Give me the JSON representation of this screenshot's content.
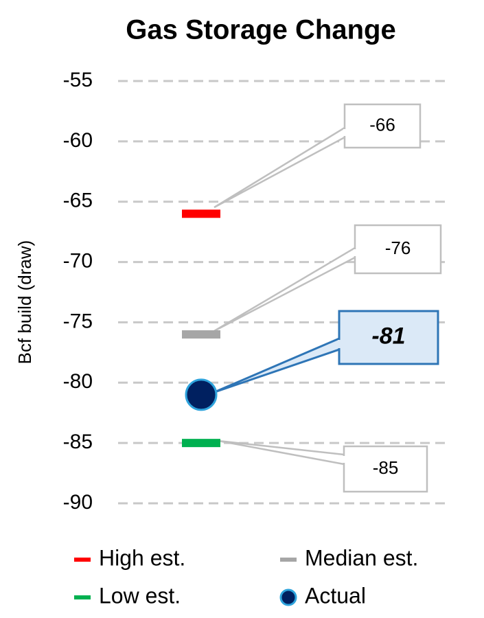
{
  "chart_data": {
    "type": "dot",
    "title": "Gas Storage Change",
    "y_label": "Bcf build (draw)",
    "ylim": [
      -90,
      -55
    ],
    "yticks": [
      -55,
      -60,
      -65,
      -70,
      -75,
      -80,
      -85,
      -90
    ],
    "grid": true,
    "series": [
      {
        "name": "High est.",
        "color": "#ff0000",
        "marker": "dash",
        "values": [
          -66
        ]
      },
      {
        "name": "Median est.",
        "color": "#a6a6a6",
        "marker": "dash",
        "values": [
          -76
        ]
      },
      {
        "name": "Actual",
        "color": "#002060",
        "marker": "circle",
        "values": [
          -81
        ]
      },
      {
        "name": "Low est.",
        "color": "#00b050",
        "marker": "dash",
        "values": [
          -85
        ]
      }
    ]
  }
}
